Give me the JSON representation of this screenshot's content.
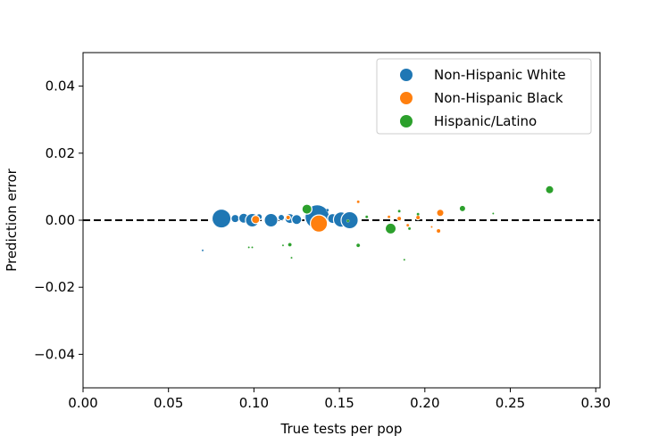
{
  "chart_data": {
    "type": "scatter",
    "title": "",
    "xlabel": "True tests per pop",
    "ylabel": "Prediction error",
    "xlim": [
      0.0,
      0.3025
    ],
    "ylim": [
      -0.05,
      0.05
    ],
    "xticks": [
      0.0,
      0.05,
      0.1,
      0.15,
      0.2,
      0.25,
      0.3
    ],
    "xtick_labels": [
      "0.00",
      "0.05",
      "0.10",
      "0.15",
      "0.20",
      "0.25",
      "0.30"
    ],
    "yticks": [
      -0.04,
      -0.02,
      0.0,
      0.02,
      0.04
    ],
    "ytick_labels": [
      "−0.04",
      "−0.02",
      "0.00",
      "0.02",
      "0.04"
    ],
    "grid": false,
    "legend_position": "top-right",
    "reference_line": {
      "y": 0.0,
      "style": "dashed",
      "color": "#000000"
    },
    "series": [
      {
        "name": "Non-Hispanic White",
        "color": "#1f77b4",
        "points": [
          {
            "x": 0.081,
            "y": 0.0005,
            "size": 20
          },
          {
            "x": 0.089,
            "y": 0.0005,
            "size": 8
          },
          {
            "x": 0.094,
            "y": 0.0006,
            "size": 10
          },
          {
            "x": 0.099,
            "y": 0.0,
            "size": 14
          },
          {
            "x": 0.103,
            "y": 0.001,
            "size": 6
          },
          {
            "x": 0.11,
            "y": 0.0,
            "size": 14
          },
          {
            "x": 0.116,
            "y": 0.0008,
            "size": 6
          },
          {
            "x": 0.121,
            "y": 0.0005,
            "size": 10
          },
          {
            "x": 0.125,
            "y": 0.0002,
            "size": 10
          },
          {
            "x": 0.131,
            "y": 0.001,
            "size": 6
          },
          {
            "x": 0.137,
            "y": 0.001,
            "size": 26
          },
          {
            "x": 0.14,
            "y": 0.0,
            "size": 8
          },
          {
            "x": 0.146,
            "y": 0.0005,
            "size": 10
          },
          {
            "x": 0.151,
            "y": 0.0002,
            "size": 16
          },
          {
            "x": 0.156,
            "y": 0.0,
            "size": 18
          },
          {
            "x": 0.07,
            "y": -0.009,
            "size": 1
          },
          {
            "x": 0.143,
            "y": 0.003,
            "size": 2
          }
        ]
      },
      {
        "name": "Non-Hispanic Black",
        "color": "#ff7f0e",
        "points": [
          {
            "x": 0.101,
            "y": 0.0002,
            "size": 8
          },
          {
            "x": 0.12,
            "y": 0.0008,
            "size": 4
          },
          {
            "x": 0.138,
            "y": -0.001,
            "size": 18
          },
          {
            "x": 0.161,
            "y": 0.0055,
            "size": 2
          },
          {
            "x": 0.185,
            "y": 0.0005,
            "size": 4
          },
          {
            "x": 0.196,
            "y": 0.0008,
            "size": 4
          },
          {
            "x": 0.209,
            "y": 0.0022,
            "size": 7
          },
          {
            "x": 0.208,
            "y": -0.0032,
            "size": 4
          },
          {
            "x": 0.19,
            "y": -0.0015,
            "size": 2
          },
          {
            "x": 0.179,
            "y": 0.001,
            "size": 2
          },
          {
            "x": 0.204,
            "y": -0.002,
            "size": 1
          }
        ]
      },
      {
        "name": "Hispanic/Latino",
        "color": "#2ca02c",
        "points": [
          {
            "x": 0.131,
            "y": 0.0033,
            "size": 10
          },
          {
            "x": 0.121,
            "y": -0.0073,
            "size": 3
          },
          {
            "x": 0.161,
            "y": -0.0075,
            "size": 3
          },
          {
            "x": 0.18,
            "y": -0.0025,
            "size": 11
          },
          {
            "x": 0.185,
            "y": 0.0027,
            "size": 2
          },
          {
            "x": 0.191,
            "y": -0.0025,
            "size": 2
          },
          {
            "x": 0.196,
            "y": 0.0018,
            "size": 2
          },
          {
            "x": 0.222,
            "y": 0.0035,
            "size": 6
          },
          {
            "x": 0.273,
            "y": 0.0091,
            "size": 8
          },
          {
            "x": 0.122,
            "y": -0.0112,
            "size": 1
          },
          {
            "x": 0.188,
            "y": -0.0118,
            "size": 1
          },
          {
            "x": 0.097,
            "y": -0.0081,
            "size": 1
          },
          {
            "x": 0.099,
            "y": -0.0081,
            "size": 1
          },
          {
            "x": 0.117,
            "y": -0.0075,
            "size": 1
          },
          {
            "x": 0.155,
            "y": -0.0002,
            "size": 2
          },
          {
            "x": 0.166,
            "y": 0.001,
            "size": 2
          },
          {
            "x": 0.24,
            "y": 0.002,
            "size": 1
          }
        ]
      }
    ]
  }
}
